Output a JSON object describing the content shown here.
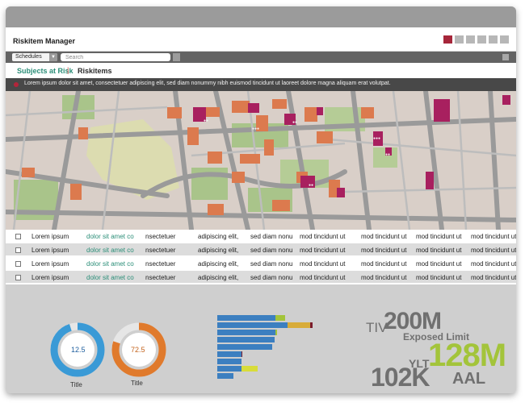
{
  "app": {
    "title": "Riskitem Manager"
  },
  "window_buttons": [
    {
      "name": "close",
      "color": "#a6263a"
    },
    {
      "name": "btn2",
      "color": "#b7b7b7"
    },
    {
      "name": "btn3",
      "color": "#b7b7b7"
    },
    {
      "name": "btn4",
      "color": "#b7b7b7"
    },
    {
      "name": "btn5",
      "color": "#b7b7b7"
    },
    {
      "name": "btn6",
      "color": "#b7b7b7"
    }
  ],
  "search": {
    "dropdown_value": "Schedules",
    "placeholder": "Search"
  },
  "tabs": {
    "active": "Subjects at Risk",
    "separator": "|",
    "other": "Riskitems"
  },
  "alert": {
    "text": "Lorem ipsum dolor sit amet, consectetuer adipiscing elit, sed diam nonummy nibh euismod tincidunt ut laoreet dolore magna aliquam erat volutpat."
  },
  "table": {
    "rows": [
      [
        "Lorem ipsum",
        "dolor sit amet co",
        "nsectetuer",
        "adipiscing elit,",
        "sed diam nonu",
        "mod tincidunt ut",
        "mod tincidunt ut",
        "mod tincidunt ut",
        "mod tincidunt ut"
      ],
      [
        "Lorem ipsum",
        "dolor sit amet co",
        "nsectetuer",
        "adipiscing elit,",
        "sed diam nonu",
        "mod tincidunt ut",
        "mod tincidunt ut",
        "mod tincidunt ut",
        "mod tincidunt ut"
      ],
      [
        "Lorem ipsum",
        "dolor sit amet co",
        "nsectetuer",
        "adipiscing elit,",
        "sed diam nonu",
        "mod tincidunt ut",
        "mod tincidunt ut",
        "mod tincidunt ut",
        "mod tincidunt ut"
      ],
      [
        "Lorem ipsum",
        "dolor sit amet co",
        "nsectetuer",
        "adipiscing elit,",
        "sed diam nonu",
        "mod tincidunt ut",
        "mod tincidunt ut",
        "mod tincidunt ut",
        "mod tincidunt ut"
      ]
    ]
  },
  "dashboard": {
    "donuts": [
      {
        "value_label": "12.5",
        "title": "Title",
        "fraction": 0.95,
        "color": "#3a9ad6"
      },
      {
        "value_label": "72.5",
        "title": "Title",
        "fraction": 0.8,
        "color": "#e07a2c"
      }
    ],
    "bar_chart": {
      "type": "bar",
      "orientation": "horizontal",
      "colors": [
        "#3c7fc0",
        "#a3c43a",
        "#d8ac3a",
        "#7a1c2c",
        "#d8dc3a"
      ],
      "bars": [
        [
          {
            "value": 72,
            "color": "#3c7fc0"
          },
          {
            "value": 12,
            "color": "#a3c43a"
          }
        ],
        [
          {
            "value": 87,
            "color": "#3c7fc0"
          },
          {
            "value": 28,
            "color": "#d8ac3a"
          },
          {
            "value": 3,
            "color": "#7a1c2c"
          }
        ],
        [
          {
            "value": 72,
            "color": "#3c7fc0"
          },
          {
            "value": 2,
            "color": "#a3c43a"
          }
        ],
        [
          {
            "value": 71,
            "color": "#3c7fc0"
          }
        ],
        [
          {
            "value": 68,
            "color": "#3c7fc0"
          }
        ],
        [
          {
            "value": 30,
            "color": "#3c7fc0"
          },
          {
            "value": 1,
            "color": "#7a1c2c"
          }
        ],
        [
          {
            "value": 30,
            "color": "#3c7fc0"
          }
        ],
        [
          {
            "value": 30,
            "color": "#3c7fc0"
          },
          {
            "value": 20,
            "color": "#d8dc3a"
          }
        ],
        [
          {
            "value": 20,
            "color": "#3c7fc0"
          }
        ]
      ]
    },
    "kpis": {
      "tiv_label": "TIV",
      "tiv_value": "200M",
      "exposed_label": "Exposed Limit",
      "ylt_label": "YLT",
      "ylt_value": "128M",
      "main_value": "102K",
      "aal_label": "AAL",
      "gray_color": "#707070",
      "green_color": "#a3c43a"
    }
  }
}
